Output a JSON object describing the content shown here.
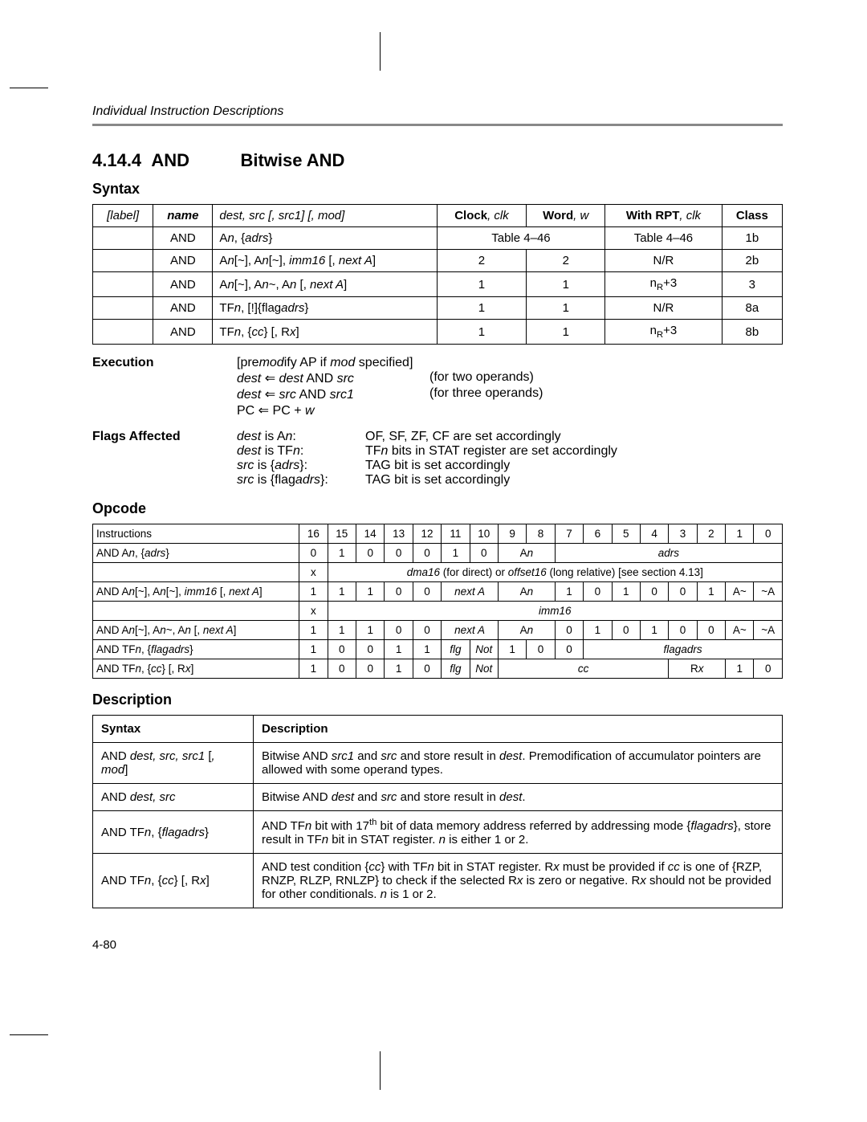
{
  "running_head": "Individual Instruction Descriptions",
  "section": {
    "num": "4.14.4",
    "name": "AND",
    "title": "Bitwise AND"
  },
  "syntax_heading": "Syntax",
  "syntax_table": {
    "headers": {
      "label": "[label]",
      "name": "name",
      "dest": "dest, src [, src1] [, mod]",
      "clock": "Clock",
      "clk": ", clk",
      "word": "Word",
      "w": ", w",
      "rpt": "With RPT",
      "rptclk": ", clk",
      "class": "Class"
    },
    "rows": [
      {
        "name": "AND",
        "dest": "An, {adrs}",
        "clock": "Table 4–46",
        "word": "",
        "rpt": "Table 4–46",
        "class": "1b",
        "merge_cw": true
      },
      {
        "name": "AND",
        "dest": "An[~], An[~], imm16 [, next A]",
        "clock": "2",
        "word": "2",
        "rpt": "N/R",
        "class": "2b"
      },
      {
        "name": "AND",
        "dest": "An[~], An~, An [, next A]",
        "clock": "1",
        "word": "1",
        "rpt": "nR+3",
        "class": "3",
        "rpt_sub": true
      },
      {
        "name": "AND",
        "dest": "TFn, [!]{flagadrs}",
        "clock": "1",
        "word": "1",
        "rpt": "N/R",
        "class": "8a"
      },
      {
        "name": "AND",
        "dest": "TFn, {cc} [, Rx]",
        "clock": "1",
        "word": "1",
        "rpt": "nR+3",
        "class": "8b",
        "rpt_sub": true
      }
    ]
  },
  "execution": {
    "label": "Execution",
    "lines": [
      {
        "c1": "[premodify AP if mod specified]",
        "c2": ""
      },
      {
        "c1": "dest  ⇐  dest  AND  src",
        "c2": "(for two operands)"
      },
      {
        "c1": "dest  ⇐  src  AND  src1",
        "c2": "(for three operands)"
      },
      {
        "c1": "PC ⇐ PC + w",
        "c2": ""
      }
    ]
  },
  "flags": {
    "label": "Flags Affected",
    "lines": [
      {
        "c1": "dest is An:",
        "c2": "OF, SF, ZF, CF are set accordingly"
      },
      {
        "c1": "dest is TFn:",
        "c2": "TFn bits in STAT register are set accordingly"
      },
      {
        "c1": "src is {adrs}:",
        "c2": "TAG bit is set accordingly"
      },
      {
        "c1": "src is {flagadrs}:",
        "c2": "TAG bit is set accordingly"
      }
    ]
  },
  "opcode_heading": "Opcode",
  "opcode": {
    "header_instr": "Instructions",
    "bits": [
      "16",
      "15",
      "14",
      "13",
      "12",
      "11",
      "10",
      "9",
      "8",
      "7",
      "6",
      "5",
      "4",
      "3",
      "2",
      "1",
      "0"
    ],
    "rows": [
      {
        "instr_html": "AND  A<span class='it'>n</span>, {<span class='it'>adrs</span>}",
        "cells": [
          {
            "t": "0"
          },
          {
            "t": "1"
          },
          {
            "t": "0"
          },
          {
            "t": "0"
          },
          {
            "t": "0"
          },
          {
            "t": "1"
          },
          {
            "t": "0"
          },
          {
            "t": "A<span class='it'>n</span>",
            "span": 2,
            "it": false
          },
          {
            "t": "<span class='it'>adrs</span>",
            "span": 8
          }
        ]
      },
      {
        "instr_html": "",
        "cells": [
          {
            "t": "x"
          },
          {
            "t": "<span class='it'>dma16</span> (for direct) or <span class='it'>offset16</span> (long relative) [see section 4.13]",
            "span": 16
          }
        ]
      },
      {
        "instr_html": "AND  A<span class='it'>n</span>[~], A<span class='it'>n</span>[~], <span class='it'>imm16</span> [, <span class='it'>next A</span>]",
        "cells": [
          {
            "t": "1"
          },
          {
            "t": "1"
          },
          {
            "t": "1"
          },
          {
            "t": "0"
          },
          {
            "t": "0"
          },
          {
            "t": "<span class='it'>next A</span>",
            "span": 2
          },
          {
            "t": "A<span class='it'>n</span>",
            "span": 2
          },
          {
            "t": "1"
          },
          {
            "t": "0"
          },
          {
            "t": "1"
          },
          {
            "t": "0"
          },
          {
            "t": "0"
          },
          {
            "t": "1"
          },
          {
            "t": "A~"
          },
          {
            "t": "~A"
          }
        ]
      },
      {
        "instr_html": "",
        "cells": [
          {
            "t": "x"
          },
          {
            "t": "<span class='it'>imm16</span>",
            "span": 16
          }
        ]
      },
      {
        "instr_html": "AND  A<span class='it'>n</span>[~], A<span class='it'>n</span>~, A<span class='it'>n</span> [, <span class='it'>next A</span>]",
        "cells": [
          {
            "t": "1"
          },
          {
            "t": "1"
          },
          {
            "t": "1"
          },
          {
            "t": "0"
          },
          {
            "t": "0"
          },
          {
            "t": "<span class='it'>next A</span>",
            "span": 2
          },
          {
            "t": "A<span class='it'>n</span>",
            "span": 2
          },
          {
            "t": "0"
          },
          {
            "t": "1"
          },
          {
            "t": "0"
          },
          {
            "t": "1"
          },
          {
            "t": "0"
          },
          {
            "t": "0"
          },
          {
            "t": "A~"
          },
          {
            "t": "~A"
          }
        ]
      },
      {
        "instr_html": "AND  TF<span class='it'>n</span>, {<span class='it'>flagadrs</span>}",
        "cells": [
          {
            "t": "1"
          },
          {
            "t": "0"
          },
          {
            "t": "0"
          },
          {
            "t": "1"
          },
          {
            "t": "1"
          },
          {
            "t": "<span class='it'>flg</span>"
          },
          {
            "t": "<span class='it'>Not</span>"
          },
          {
            "t": "1"
          },
          {
            "t": "0"
          },
          {
            "t": "0"
          },
          {
            "t": "<span class='it'>flagadrs</span>",
            "span": 7
          }
        ]
      },
      {
        "instr_html": "AND  TF<span class='it'>n</span>, {<span class='it'>cc</span>} [, R<span class='it'>x</span>]",
        "cells": [
          {
            "t": "1"
          },
          {
            "t": "0"
          },
          {
            "t": "0"
          },
          {
            "t": "1"
          },
          {
            "t": "0"
          },
          {
            "t": "<span class='it'>flg</span>"
          },
          {
            "t": "<span class='it'>Not</span>"
          },
          {
            "t": "<span class='it'>cc</span>",
            "span": 6
          },
          {
            "t": "R<span class='it'>x</span>",
            "span": 2
          },
          {
            "t": "1"
          },
          {
            "t": "0"
          }
        ]
      }
    ]
  },
  "description_heading": "Description",
  "description_table": {
    "headers": {
      "syntax": "Syntax",
      "desc": "Description"
    },
    "rows": [
      {
        "s_html": "AND <span class='it'>dest, src, src1</span> [<span class='it'>, mod</span>]",
        "d_html": "Bitwise AND <span class='it'>src1</span> and <span class='it'>src</span> and store result in <span class='it'>dest</span>. Premodification of accumulator pointers are allowed with some operand types."
      },
      {
        "s_html": "AND <span class='it'>dest, src</span>",
        "d_html": "Bitwise AND <span class='it'>dest</span> and <span class='it'>src</span> and store result in <span class='it'>dest</span>."
      },
      {
        "s_html": "AND TF<span class='it'>n</span>, {<span class='it'>flagadrs</span>}",
        "d_html": "AND TF<span class='it'>n</span> bit with 17<span class='sup'>th</span> bit of data memory address referred by addressing mode {<span class='it'>flagadrs</span>}, store result in TF<span class='it'>n</span> bit in STAT register. <span class='it'>n</span> is either 1 or 2."
      },
      {
        "s_html": "AND TF<span class='it'>n</span>, {<span class='it'>cc</span>} [, R<span class='it'>x</span>]",
        "d_html": "AND test condition {<span class='it'>cc</span>} with TF<span class='it'>n</span> bit in STAT register. R<span class='it'>x</span> must be provided if <span class='it'>cc</span> is one of {RZP, RNZP, RLZP, RNLZP} to check if the selected R<span class='it'>x</span> is zero or negative. R<span class='it'>x</span> should not be provided for other conditionals. <span class='it'>n</span> is 1 or 2."
      }
    ]
  },
  "page_number": "4-80",
  "colors": {
    "rule": "#888888",
    "text": "#000000",
    "bg": "#ffffff"
  }
}
